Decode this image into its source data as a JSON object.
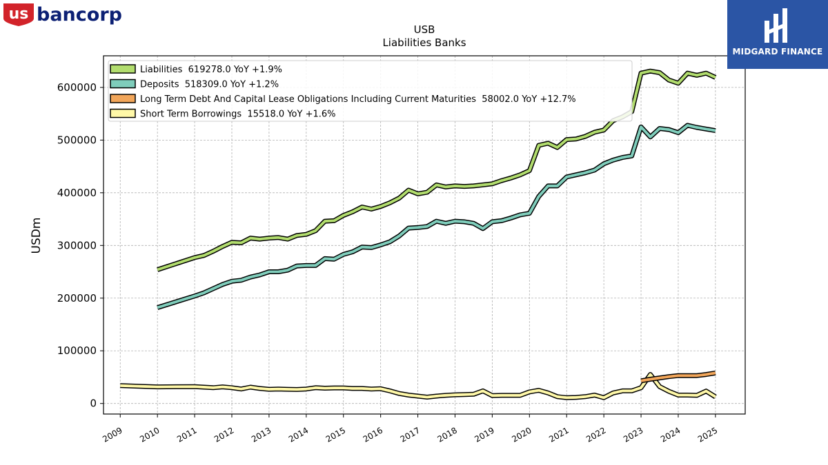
{
  "branding": {
    "left_logo_prefix": "us",
    "left_logo_text": "bancorp",
    "right_logo_text": "MIDGARD FINANCE",
    "colors": {
      "usb_red": "#d2232a",
      "usb_navy": "#0c2074",
      "midgard_blue": "#2b55a5"
    }
  },
  "chart_data": {
    "type": "line",
    "title": "USB",
    "subtitle": "Liabilities Banks",
    "xlabel": "",
    "ylabel": "USDm",
    "xlim": [
      2008.55,
      2025.8
    ],
    "ylim": [
      -20000,
      660000
    ],
    "grid": true,
    "legend_position": "top-left",
    "x_ticks": [
      2009,
      2010,
      2011,
      2012,
      2013,
      2014,
      2015,
      2016,
      2017,
      2018,
      2019,
      2020,
      2021,
      2022,
      2023,
      2024,
      2025
    ],
    "x_tick_labels": [
      "2009",
      "2010",
      "2011",
      "2012",
      "2013",
      "2014",
      "2015",
      "2016",
      "2017",
      "2018",
      "2019",
      "2020",
      "2021",
      "2022",
      "2023",
      "2024",
      "2025"
    ],
    "y_ticks": [
      0,
      100000,
      200000,
      300000,
      400000,
      500000,
      600000
    ],
    "y_tick_labels": [
      "0",
      "100000",
      "200000",
      "300000",
      "400000",
      "500000",
      "600000"
    ],
    "series": [
      {
        "name": "Short Term Borrowings",
        "legend_label": "Short Term Borrowings  15518.0 YoY +1.6%",
        "color": "#fff8a8",
        "x": [
          2009.0,
          2010.0,
          2011.0,
          2011.5,
          2011.75,
          2012.0,
          2012.25,
          2012.5,
          2012.75,
          2013.0,
          2013.25,
          2013.5,
          2013.75,
          2014.0,
          2014.25,
          2014.5,
          2014.75,
          2015.0,
          2015.25,
          2015.5,
          2015.75,
          2016.0,
          2016.25,
          2016.5,
          2016.75,
          2017.0,
          2017.25,
          2017.5,
          2017.75,
          2018.0,
          2018.25,
          2018.5,
          2018.75,
          2019.0,
          2019.25,
          2019.5,
          2019.75,
          2020.0,
          2020.25,
          2020.5,
          2020.75,
          2021.0,
          2021.25,
          2021.5,
          2021.75,
          2022.0,
          2022.25,
          2022.5,
          2022.75,
          2023.0,
          2023.25,
          2023.5,
          2023.75,
          2024.0,
          2024.25,
          2024.5,
          2024.75,
          2025.0
        ],
        "y": [
          34000,
          31500,
          32000,
          30000,
          31500,
          30000,
          27500,
          31000,
          28500,
          27000,
          27500,
          27000,
          26500,
          27500,
          30000,
          29000,
          29500,
          29500,
          28500,
          28500,
          27500,
          28000,
          24000,
          19000,
          16000,
          14000,
          12000,
          14000,
          15500,
          16500,
          17000,
          17500,
          24000,
          15000,
          15500,
          15500,
          15500,
          22000,
          25000,
          20000,
          13000,
          11000,
          11500,
          13000,
          16000,
          11000,
          20000,
          24000,
          24000,
          30000,
          55000,
          32000,
          23000,
          16000,
          16000,
          15500,
          23500,
          12500
        ]
      },
      {
        "name": "Long Term Debt And Capital Lease Obligations Including Current Maturities",
        "legend_label": "Long Term Debt And Capital Lease Obligations Including Current Maturities  58002.0 YoY +12.7%",
        "color": "#f2a65a",
        "x": [
          2023.0,
          2023.25,
          2023.5,
          2023.75,
          2024.0,
          2024.25,
          2024.5,
          2024.75,
          2025.0
        ],
        "y": [
          43000,
          46000,
          48500,
          51000,
          53000,
          53000,
          53000,
          55000,
          58000
        ]
      },
      {
        "name": "Deposits",
        "legend_label": "Deposits  518309.0 YoY +1.2%",
        "color": "#7fcdbb",
        "x": [
          2010.0,
          2011.0,
          2011.25,
          2011.5,
          2011.75,
          2012.0,
          2012.25,
          2012.5,
          2012.75,
          2013.0,
          2013.25,
          2013.5,
          2013.75,
          2014.0,
          2014.25,
          2014.5,
          2014.75,
          2015.0,
          2015.25,
          2015.5,
          2015.75,
          2016.0,
          2016.25,
          2016.5,
          2016.75,
          2017.0,
          2017.25,
          2017.5,
          2017.75,
          2018.0,
          2018.25,
          2018.5,
          2018.75,
          2019.0,
          2019.25,
          2019.5,
          2019.75,
          2020.0,
          2020.25,
          2020.5,
          2020.75,
          2021.0,
          2021.25,
          2021.5,
          2021.75,
          2022.0,
          2022.25,
          2022.5,
          2022.75,
          2023.0,
          2023.25,
          2023.5,
          2023.75,
          2024.0,
          2024.25,
          2024.5,
          2024.75,
          2025.0
        ],
        "y": [
          182000,
          204000,
          210000,
          218000,
          226000,
          232000,
          234000,
          240000,
          244000,
          250000,
          250000,
          253000,
          261000,
          262000,
          262000,
          275000,
          274000,
          283000,
          288000,
          297000,
          296000,
          301000,
          307000,
          318000,
          333000,
          334000,
          336000,
          346000,
          342000,
          346000,
          345000,
          342000,
          332000,
          345000,
          347000,
          352000,
          358000,
          361000,
          393000,
          413000,
          413000,
          430000,
          434000,
          438000,
          443000,
          455000,
          462000,
          467000,
          470000,
          525000,
          506000,
          522000,
          520000,
          514000,
          528000,
          524000,
          521000,
          518000
        ]
      },
      {
        "name": "Liabilities",
        "legend_label": "Liabilities  619278.0 YoY +1.9%",
        "color": "#b2dd6e",
        "x": [
          2010.0,
          2011.0,
          2011.25,
          2011.5,
          2011.75,
          2012.0,
          2012.25,
          2012.5,
          2012.75,
          2013.0,
          2013.25,
          2013.5,
          2013.75,
          2014.0,
          2014.25,
          2014.5,
          2014.75,
          2015.0,
          2015.25,
          2015.5,
          2015.75,
          2016.0,
          2016.25,
          2016.5,
          2016.75,
          2017.0,
          2017.25,
          2017.5,
          2017.75,
          2018.0,
          2018.25,
          2018.5,
          2018.75,
          2019.0,
          2019.25,
          2019.5,
          2019.75,
          2020.0,
          2020.25,
          2020.5,
          2020.75,
          2021.0,
          2021.25,
          2021.5,
          2021.75,
          2022.0,
          2022.25,
          2022.5,
          2022.75,
          2023.0,
          2023.25,
          2023.5,
          2023.75,
          2024.0,
          2024.25,
          2024.5,
          2024.75,
          2025.0
        ],
        "y": [
          254000,
          277000,
          281000,
          289000,
          298000,
          306000,
          305000,
          314000,
          312000,
          314000,
          315000,
          312000,
          319000,
          321000,
          328000,
          346000,
          347000,
          357000,
          364000,
          373000,
          369000,
          374000,
          381000,
          390000,
          405000,
          398000,
          401000,
          415000,
          411000,
          413000,
          412000,
          413000,
          415000,
          417000,
          423000,
          428000,
          434000,
          442000,
          490000,
          494000,
          486000,
          501000,
          502000,
          507000,
          515000,
          519000,
          537000,
          544000,
          554000,
          627000,
          631000,
          628000,
          614000,
          608000,
          627000,
          623000,
          627000,
          619000
        ]
      }
    ]
  }
}
